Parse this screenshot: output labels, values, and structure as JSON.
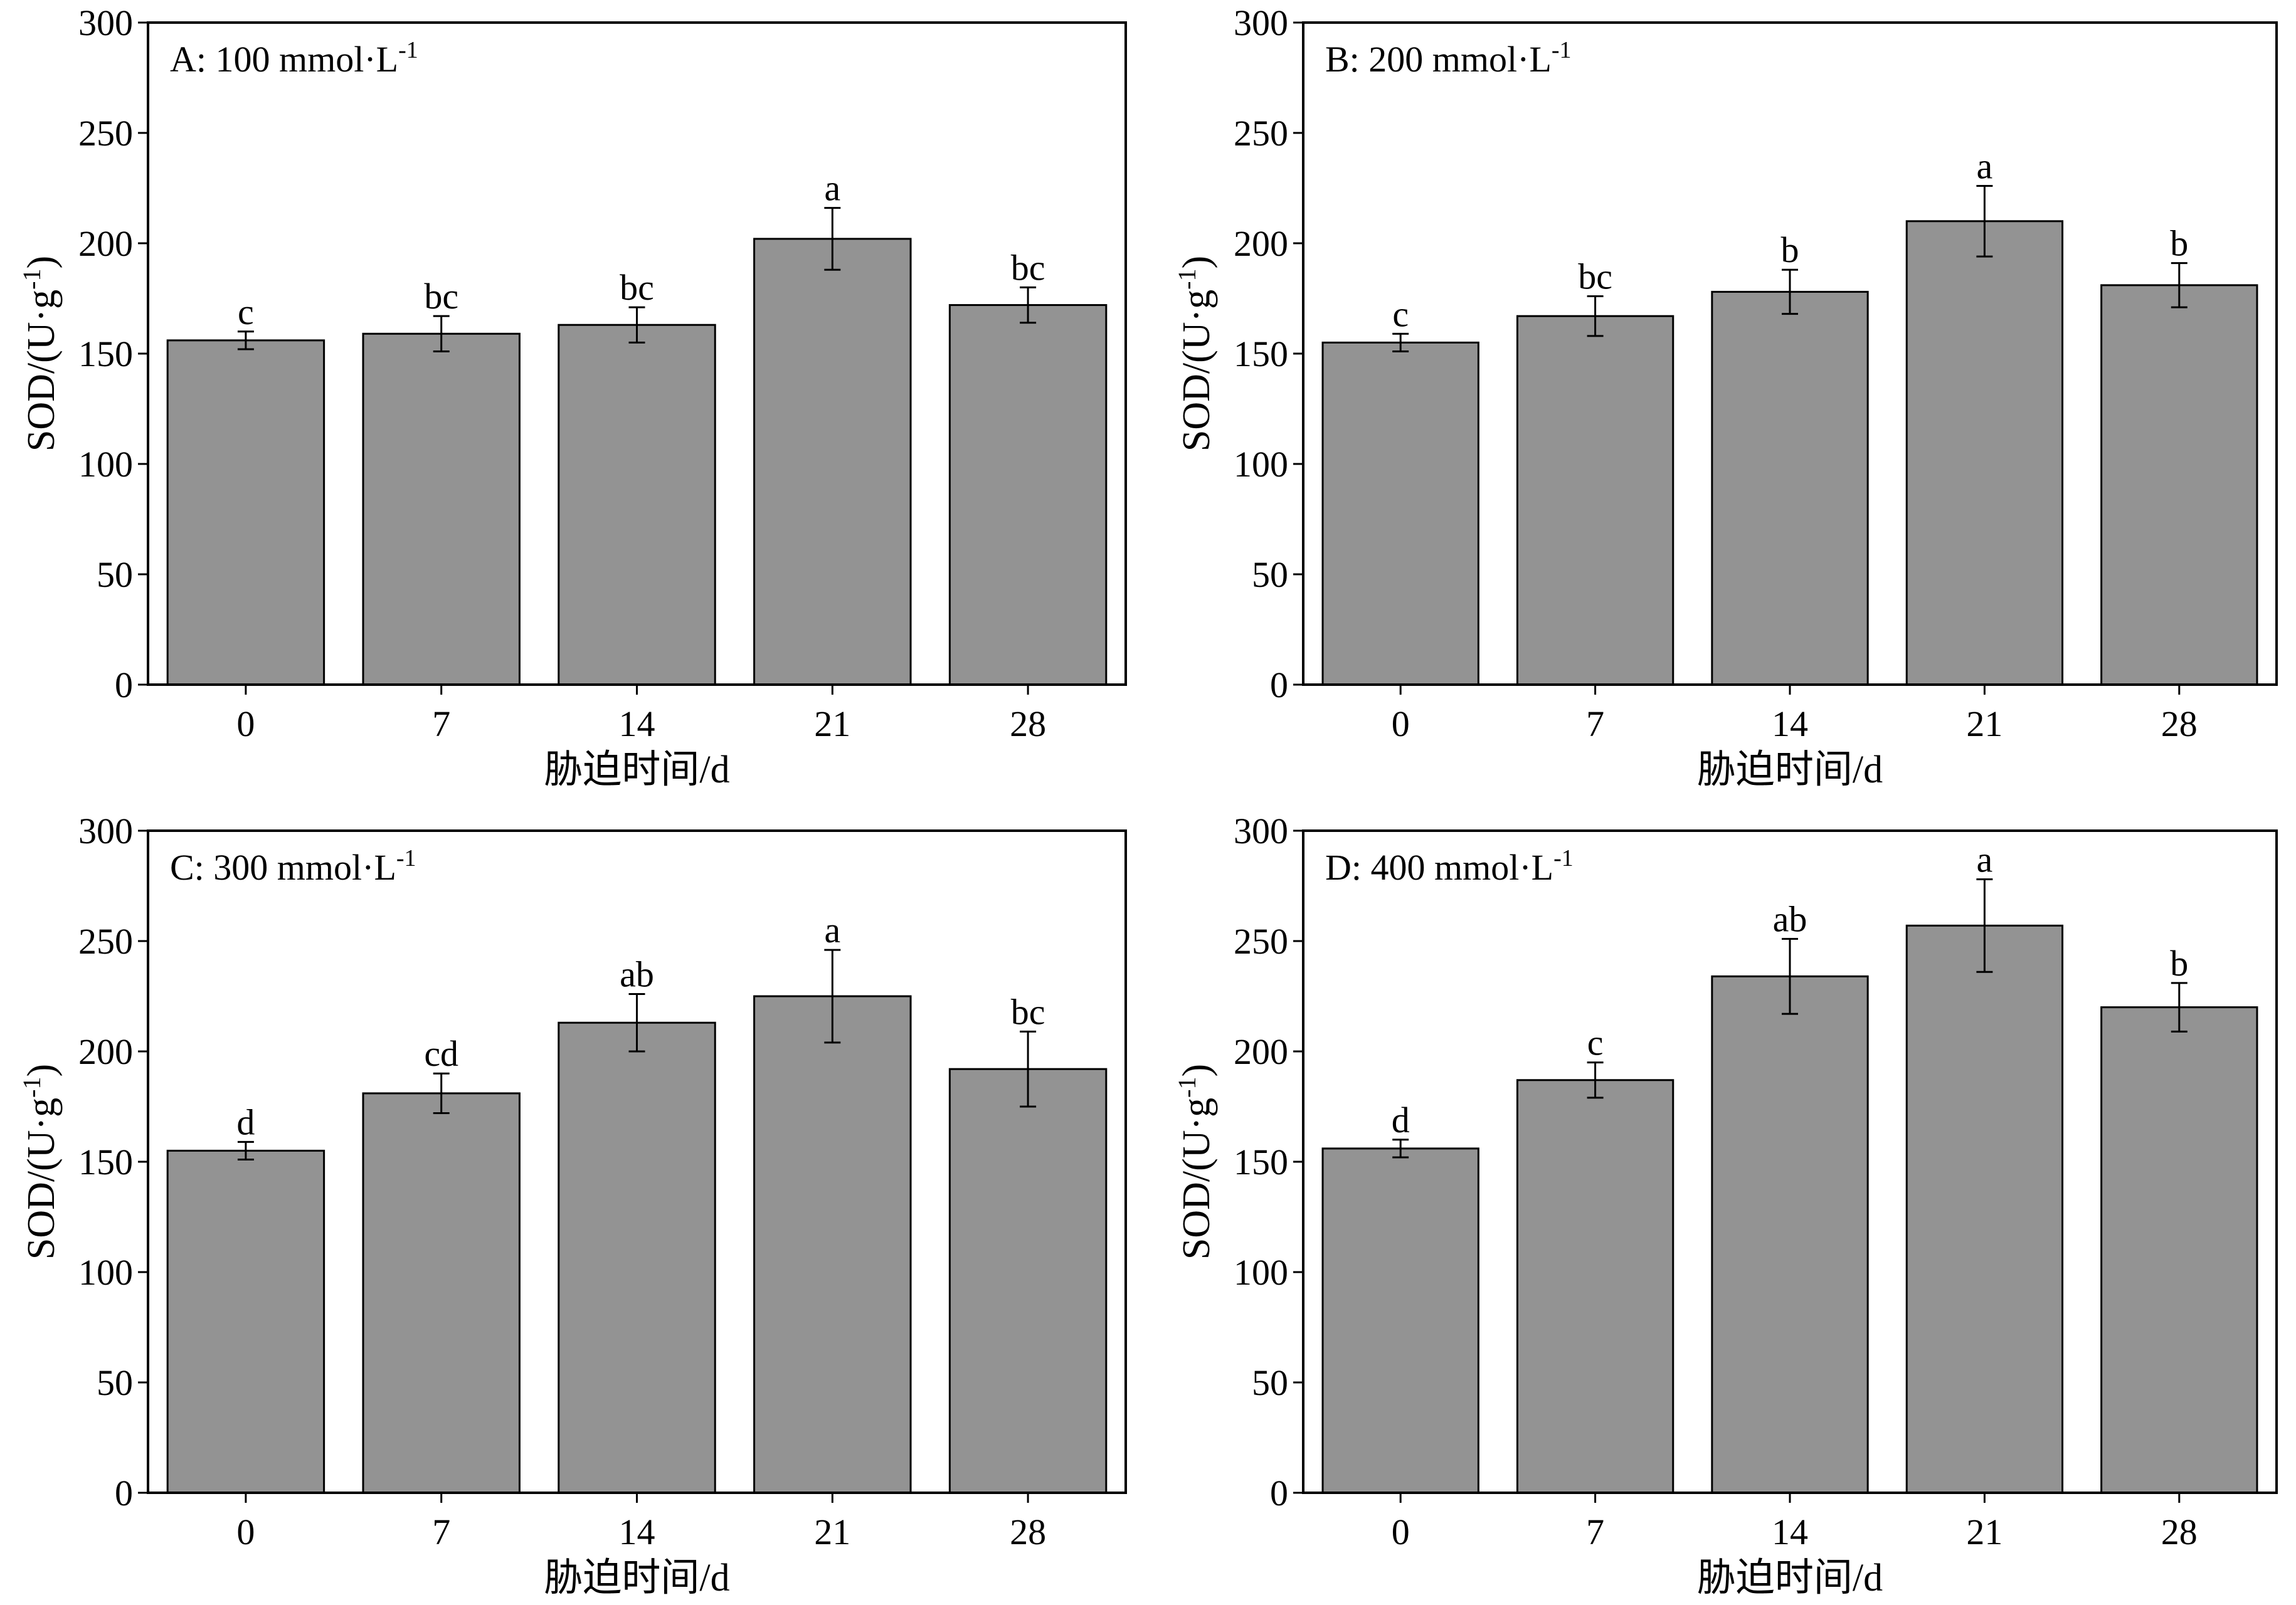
{
  "chart_data": [
    {
      "type": "bar",
      "title": "A: 100 mmol·L",
      "title_superscript": "-1",
      "xlabel": "胁迫时间/d",
      "ylabel": "SOD/(U·g",
      "ylabel_superscript": "-1",
      "ylabel_suffix": ")",
      "categories": [
        "0",
        "7",
        "14",
        "21",
        "28"
      ],
      "values": [
        156,
        159,
        163,
        202,
        172
      ],
      "errors": [
        4,
        8,
        8,
        14,
        8
      ],
      "letters": [
        "c",
        "bc",
        "bc",
        "a",
        "bc"
      ],
      "ylim": [
        0,
        300
      ],
      "yticks": [
        0,
        50,
        100,
        150,
        200,
        250,
        300
      ],
      "bar_color": "#939393",
      "grid": false
    },
    {
      "type": "bar",
      "title": "B: 200 mmol·L",
      "title_superscript": "-1",
      "xlabel": "胁迫时间/d",
      "ylabel": "SOD/(U·g",
      "ylabel_superscript": "-1",
      "ylabel_suffix": ")",
      "categories": [
        "0",
        "7",
        "14",
        "21",
        "28"
      ],
      "values": [
        155,
        167,
        178,
        210,
        181
      ],
      "errors": [
        4,
        9,
        10,
        16,
        10
      ],
      "letters": [
        "c",
        "bc",
        "b",
        "a",
        "b"
      ],
      "ylim": [
        0,
        300
      ],
      "yticks": [
        0,
        50,
        100,
        150,
        200,
        250,
        300
      ],
      "bar_color": "#939393",
      "grid": false
    },
    {
      "type": "bar",
      "title": "C: 300 mmol·L",
      "title_superscript": "-1",
      "xlabel": "胁迫时间/d",
      "ylabel": "SOD/(U·g",
      "ylabel_superscript": "-1",
      "ylabel_suffix": ")",
      "categories": [
        "0",
        "7",
        "14",
        "21",
        "28"
      ],
      "values": [
        155,
        181,
        213,
        225,
        192
      ],
      "errors": [
        4,
        9,
        13,
        21,
        17
      ],
      "letters": [
        "d",
        "cd",
        "ab",
        "a",
        "bc"
      ],
      "ylim": [
        0,
        300
      ],
      "yticks": [
        0,
        50,
        100,
        150,
        200,
        250,
        300
      ],
      "bar_color": "#939393",
      "grid": false
    },
    {
      "type": "bar",
      "title": "D: 400 mmol·L",
      "title_superscript": "-1",
      "xlabel": "胁迫时间/d",
      "ylabel": "SOD/(U·g",
      "ylabel_superscript": "-1",
      "ylabel_suffix": ")",
      "categories": [
        "0",
        "7",
        "14",
        "21",
        "28"
      ],
      "values": [
        156,
        187,
        234,
        257,
        220
      ],
      "errors": [
        4,
        8,
        17,
        21,
        11
      ],
      "letters": [
        "d",
        "c",
        "ab",
        "a",
        "b"
      ],
      "ylim": [
        0,
        300
      ],
      "yticks": [
        0,
        50,
        100,
        150,
        200,
        250,
        300
      ],
      "bar_color": "#939393",
      "grid": false
    }
  ]
}
